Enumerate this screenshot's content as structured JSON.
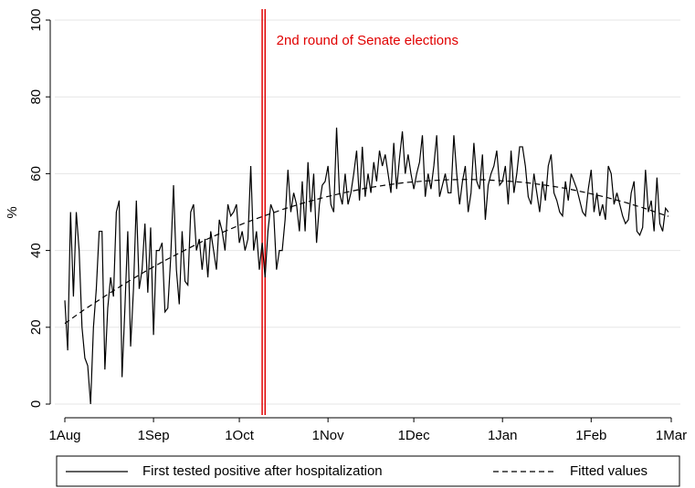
{
  "chart_data": {
    "type": "line",
    "ylabel": "%",
    "xlim": [
      0,
      212
    ],
    "ylim": [
      0,
      100
    ],
    "xticks": [
      {
        "value": 0,
        "label": "1Aug"
      },
      {
        "value": 31,
        "label": "1Sep"
      },
      {
        "value": 61,
        "label": "1Oct"
      },
      {
        "value": 92,
        "label": "1Nov"
      },
      {
        "value": 122,
        "label": "1Dec"
      },
      {
        "value": 153,
        "label": "1Jan"
      },
      {
        "value": 184,
        "label": "1Feb"
      },
      {
        "value": 212,
        "label": "1Mar"
      }
    ],
    "yticks": [
      0,
      20,
      40,
      60,
      80,
      100
    ],
    "grid": true,
    "legend": "bottom",
    "annotation": {
      "x": 69.5,
      "label": "2nd round of Senate elections",
      "color": "#e00000"
    },
    "series": [
      {
        "name": "First tested positive after hospitalization",
        "color": "#000000",
        "dash": false,
        "x": [
          0,
          1,
          2,
          3,
          4,
          5,
          6,
          7,
          8,
          9,
          10,
          11,
          12,
          13,
          14,
          15,
          16,
          17,
          18,
          19,
          20,
          21,
          22,
          23,
          24,
          25,
          26,
          27,
          28,
          29,
          30,
          31,
          32,
          33,
          34,
          35,
          36,
          37,
          38,
          39,
          40,
          41,
          42,
          43,
          44,
          45,
          46,
          47,
          48,
          49,
          50,
          51,
          52,
          53,
          54,
          55,
          56,
          57,
          58,
          59,
          60,
          61,
          62,
          63,
          64,
          65,
          66,
          67,
          68,
          69,
          70,
          71,
          72,
          73,
          74,
          75,
          76,
          77,
          78,
          79,
          80,
          81,
          82,
          83,
          84,
          85,
          86,
          87,
          88,
          89,
          90,
          91,
          92,
          93,
          94,
          95,
          96,
          97,
          98,
          99,
          100,
          101,
          102,
          103,
          104,
          105,
          106,
          107,
          108,
          109,
          110,
          111,
          112,
          113,
          114,
          115,
          116,
          117,
          118,
          119,
          120,
          121,
          122,
          123,
          124,
          125,
          126,
          127,
          128,
          129,
          130,
          131,
          132,
          133,
          134,
          135,
          136,
          137,
          138,
          139,
          140,
          141,
          142,
          143,
          144,
          145,
          146,
          147,
          148,
          149,
          150,
          151,
          152,
          153,
          154,
          155,
          156,
          157,
          158,
          159,
          160,
          161,
          162,
          163,
          164,
          165,
          166,
          167,
          168,
          169,
          170,
          171,
          172,
          173,
          174,
          175,
          176,
          177,
          178,
          179,
          180,
          181,
          182,
          183,
          184,
          185,
          186,
          187,
          188,
          189,
          190,
          191,
          192,
          193,
          194,
          195,
          196,
          197,
          198,
          199,
          200,
          201,
          202,
          203,
          204,
          205,
          206,
          207,
          208,
          209,
          210,
          211
        ],
        "values": [
          27,
          14,
          50,
          28,
          50,
          40,
          20,
          12,
          10,
          0,
          20,
          30,
          45,
          45,
          9,
          25,
          33,
          28,
          50,
          53,
          7,
          25,
          45,
          15,
          30,
          53,
          30,
          35,
          47,
          29,
          46,
          18,
          40,
          40,
          42,
          24,
          25,
          38,
          57,
          35,
          26,
          45,
          32,
          31,
          50,
          52,
          40,
          43,
          35,
          43,
          33,
          45,
          40,
          35,
          48,
          45,
          40,
          52,
          49,
          50,
          52,
          42,
          45,
          40,
          43,
          62,
          40,
          45,
          35,
          42,
          33,
          45,
          52,
          50,
          35,
          40,
          40,
          48,
          61,
          50,
          55,
          52,
          45,
          58,
          45,
          63,
          50,
          60,
          42,
          52,
          57,
          58,
          62,
          52,
          50,
          72,
          55,
          52,
          60,
          52,
          55,
          60,
          66,
          53,
          67,
          54,
          60,
          55,
          63,
          58,
          66,
          62,
          65,
          60,
          55,
          68,
          56,
          64,
          71,
          60,
          65,
          60,
          56,
          60,
          63,
          70,
          54,
          60,
          56,
          62,
          70,
          54,
          57,
          60,
          55,
          55,
          70,
          60,
          52,
          58,
          62,
          50,
          55,
          68,
          58,
          56,
          65,
          48,
          57,
          60,
          62,
          66,
          57,
          58,
          62,
          52,
          66,
          55,
          60,
          67,
          67,
          62,
          54,
          52,
          60,
          55,
          50,
          58,
          53,
          62,
          65,
          55,
          53,
          50,
          49,
          58,
          53,
          60,
          58,
          56,
          53,
          50,
          49,
          56,
          61,
          50,
          55,
          49,
          52,
          48,
          62,
          60,
          52,
          55,
          52,
          49,
          47,
          48,
          55,
          58,
          45,
          44,
          46,
          61,
          50,
          53,
          45,
          59,
          47,
          45,
          51,
          50
        ]
      },
      {
        "name": "Fitted values",
        "color": "#000000",
        "dash": true,
        "x": [
          0,
          7,
          14,
          21,
          28,
          35,
          42,
          49,
          56,
          63,
          70,
          77,
          84,
          91,
          98,
          105,
          112,
          119,
          126,
          133,
          140,
          147,
          154,
          161,
          168,
          175,
          182,
          189,
          196,
          203,
          210,
          211
        ],
        "values": [
          21.0,
          24.7,
          28.1,
          31.4,
          34.5,
          37.4,
          40.1,
          42.7,
          45.0,
          47.2,
          49.1,
          50.9,
          52.5,
          53.9,
          55.1,
          56.2,
          57.0,
          57.7,
          58.1,
          58.4,
          58.5,
          58.4,
          58.1,
          57.7,
          57.0,
          56.2,
          55.1,
          53.9,
          52.5,
          50.9,
          49.1,
          48.9
        ]
      }
    ]
  }
}
